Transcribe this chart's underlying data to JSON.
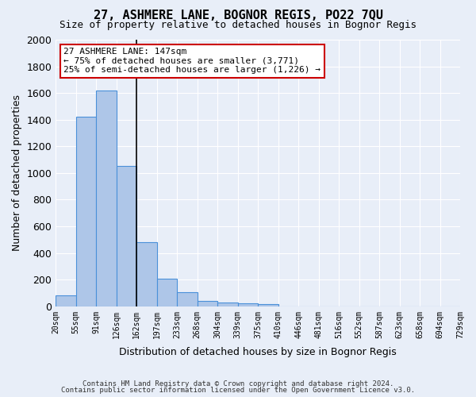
{
  "title": "27, ASHMERE LANE, BOGNOR REGIS, PO22 7QU",
  "subtitle": "Size of property relative to detached houses in Bognor Regis",
  "xlabel": "Distribution of detached houses by size in Bognor Regis",
  "ylabel": "Number of detached properties",
  "footnote1": "Contains HM Land Registry data © Crown copyright and database right 2024.",
  "footnote2": "Contains public sector information licensed under the Open Government Licence v3.0.",
  "annotation_title": "27 ASHMERE LANE: 147sqm",
  "annotation_line2": "← 75% of detached houses are smaller (3,771)",
  "annotation_line3": "25% of semi-detached houses are larger (1,226) →",
  "bar_color": "#aec6e8",
  "bar_edge_color": "#4a90d9",
  "marker_line_color": "#000000",
  "annotation_box_color": "#ffffff",
  "annotation_box_edge": "#cc0000",
  "background_color": "#e8eef8",
  "ylim": [
    0,
    2000
  ],
  "yticks": [
    0,
    200,
    400,
    600,
    800,
    1000,
    1200,
    1400,
    1600,
    1800,
    2000
  ],
  "bin_labels": [
    "20sqm",
    "55sqm",
    "91sqm",
    "126sqm",
    "162sqm",
    "197sqm",
    "233sqm",
    "268sqm",
    "304sqm",
    "339sqm",
    "375sqm",
    "410sqm",
    "446sqm",
    "481sqm",
    "516sqm",
    "552sqm",
    "587sqm",
    "623sqm",
    "658sqm",
    "694sqm",
    "729sqm"
  ],
  "bar_heights": [
    85,
    1420,
    1620,
    1050,
    480,
    205,
    105,
    40,
    30,
    22,
    18,
    0,
    0,
    0,
    0,
    0,
    0,
    0,
    0,
    0
  ],
  "marker_bin_index": 4,
  "num_bins": 20
}
